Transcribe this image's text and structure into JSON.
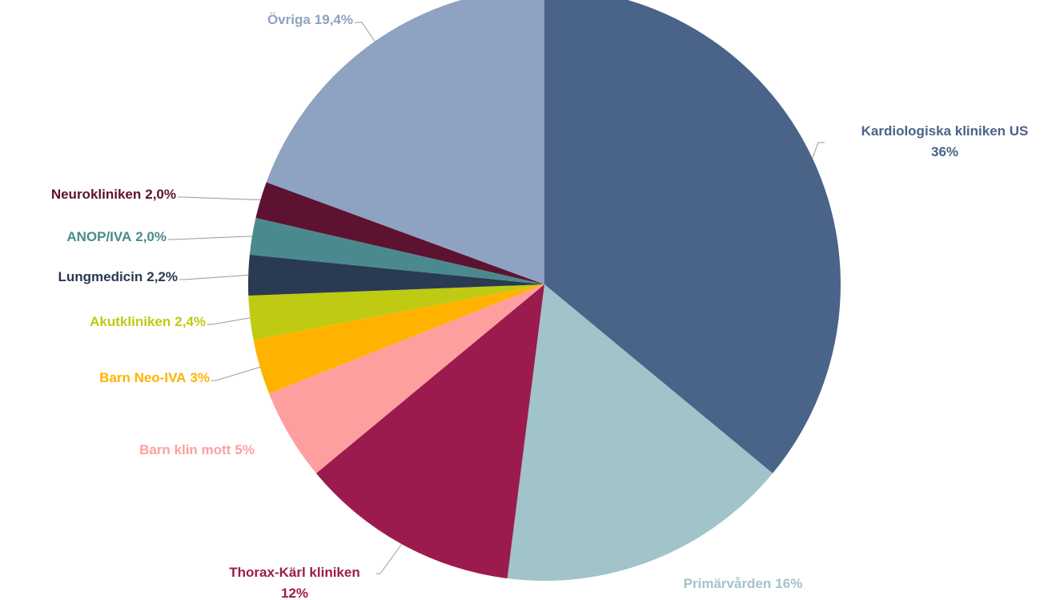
{
  "chart_data": {
    "type": "pie",
    "categories": [
      "Kardiologiska kliniken US",
      "Primärvården",
      "Thorax-Kärl kliniken",
      "Barn klin mott",
      "Barn Neo-IVA",
      "Akutkliniken",
      "Lungmedicin",
      "ANOP/IVA",
      "Neurokliniken",
      "Övriga"
    ],
    "values": [
      36,
      16,
      12,
      5,
      3,
      2.4,
      2.2,
      2.0,
      2.0,
      19.4
    ],
    "value_labels": [
      "36%",
      "16%",
      "12%",
      "5%",
      "3%",
      "2,4%",
      "2,2%",
      "2,0%",
      "2,0%",
      "19,4%"
    ],
    "colors": [
      "#4a6389",
      "#a0c4c9",
      "#9b1b4e",
      "#fe9f9f",
      "#ffb300",
      "#bfca12",
      "#2a3a52",
      "#4a8a8e",
      "#5c1230",
      "#8ea2c1"
    ]
  }
}
